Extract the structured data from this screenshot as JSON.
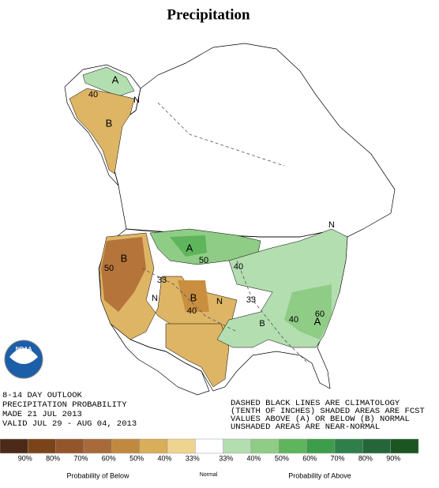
{
  "title": "Precipitation",
  "logo_text": "NOAA",
  "map_labels": [
    "A",
    "40",
    "N",
    "B",
    "A",
    "50",
    "40",
    "B",
    "50",
    "33",
    "N",
    "B",
    "40",
    "N",
    "33",
    "B",
    "A",
    "60",
    "40",
    "N"
  ],
  "outlook": [
    "8-14 DAY OUTLOOK",
    "PRECIPITATION PROBABILITY",
    "MADE   21 JUL 2013",
    "VALID  JUL 29 - AUG 04, 2013"
  ],
  "notes": [
    "DASHED BLACK LINES ARE CLIMATOLOGY",
    "(TENTH OF INCHES) SHADED AREAS ARE FCST",
    "VALUES ABOVE (A) OR BELOW (B) NORMAL",
    "UNSHADED AREAS ARE NEAR-NORMAL"
  ],
  "legend": {
    "colors": [
      "#4b2a18",
      "#7b4318",
      "#93552a",
      "#a86a3a",
      "#c1893f",
      "#d9ae5a",
      "#efd490",
      "#ffffff",
      "#b3deb0",
      "#8fcc86",
      "#5eb55b",
      "#3c9d4a",
      "#2e7f4a",
      "#24663a",
      "#1b5522"
    ],
    "labels": [
      "90%",
      "80%",
      "70%",
      "60%",
      "50%",
      "40%",
      "33%",
      "33%",
      "40%",
      "50%",
      "60%",
      "70%",
      "80%",
      "90%"
    ],
    "below_label": "Probability of Below",
    "normal_label": "Normal",
    "above_label": "Probability of Above"
  }
}
